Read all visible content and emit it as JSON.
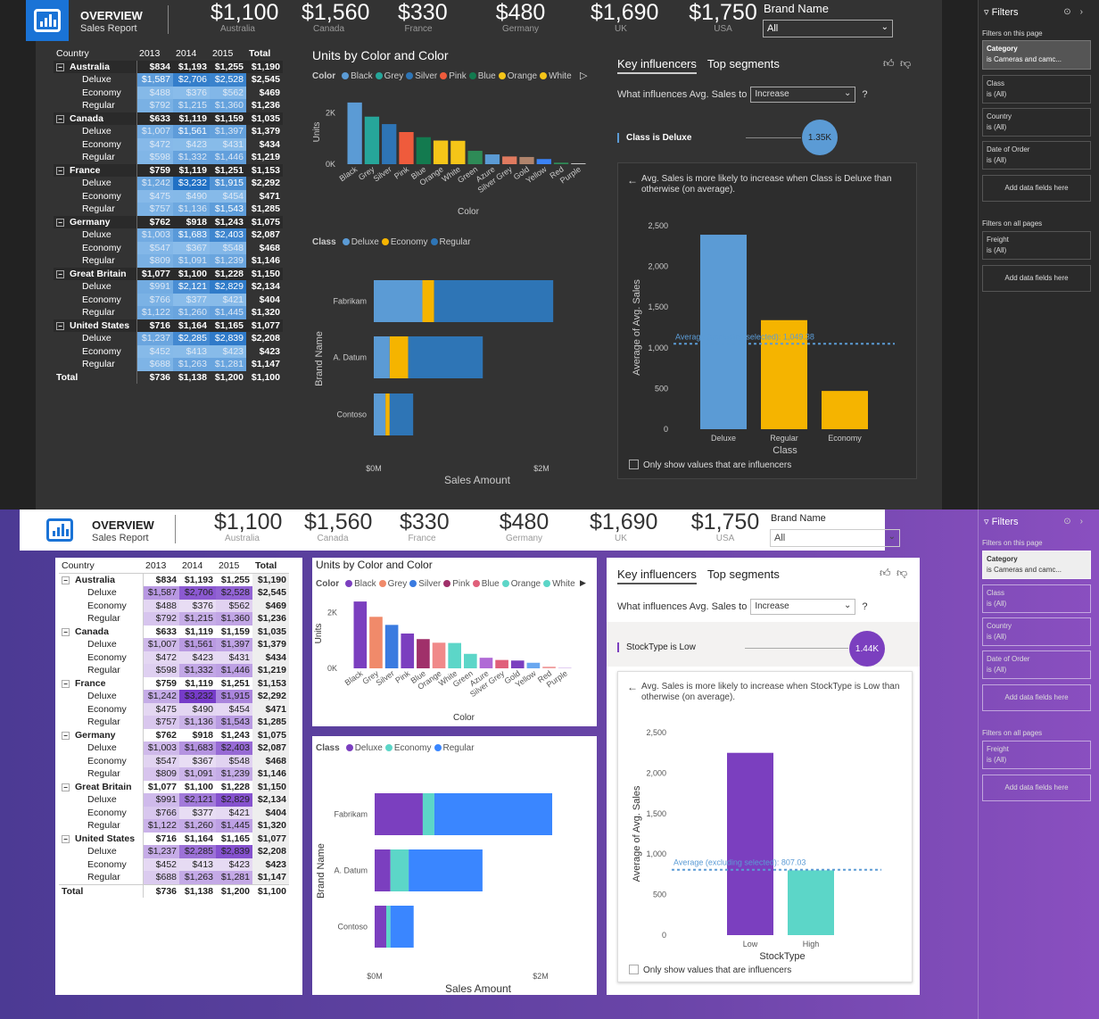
{
  "header": {
    "title": "OVERVIEW",
    "subtitle": "Sales Report",
    "kpis": [
      {
        "value": "$1,100",
        "label": "Australia"
      },
      {
        "value": "$1,560",
        "label": "Canada"
      },
      {
        "value": "$330",
        "label": "France"
      },
      {
        "value": "$480",
        "label": "Germany"
      },
      {
        "value": "$1,690",
        "label": "UK"
      },
      {
        "value": "$1,750",
        "label": "USA"
      }
    ],
    "brand_filter_label": "Brand Name",
    "brand_filter_value": "All"
  },
  "matrix": {
    "columns": [
      "Country",
      "2013",
      "2014",
      "2015",
      "Total"
    ],
    "groups": [
      {
        "name": "Australia",
        "values": [
          "$834",
          "$1,193",
          "$1,255",
          "$1,190"
        ],
        "rows": [
          {
            "name": "Deluxe",
            "values": [
              "$1,587",
              "$2,706",
              "$2,528",
              "$2,545"
            ]
          },
          {
            "name": "Economy",
            "values": [
              "$488",
              "$376",
              "$562",
              "$469"
            ]
          },
          {
            "name": "Regular",
            "values": [
              "$792",
              "$1,215",
              "$1,360",
              "$1,236"
            ]
          }
        ]
      },
      {
        "name": "Canada",
        "values": [
          "$633",
          "$1,119",
          "$1,159",
          "$1,035"
        ],
        "rows": [
          {
            "name": "Deluxe",
            "values": [
              "$1,007",
              "$1,561",
              "$1,397",
              "$1,379"
            ]
          },
          {
            "name": "Economy",
            "values": [
              "$472",
              "$423",
              "$431",
              "$434"
            ]
          },
          {
            "name": "Regular",
            "values": [
              "$598",
              "$1,332",
              "$1,446",
              "$1,219"
            ]
          }
        ]
      },
      {
        "name": "France",
        "values": [
          "$759",
          "$1,119",
          "$1,251",
          "$1,153"
        ],
        "rows": [
          {
            "name": "Deluxe",
            "values": [
              "$1,242",
              "$3,232",
              "$1,915",
              "$2,292"
            ]
          },
          {
            "name": "Economy",
            "values": [
              "$475",
              "$490",
              "$454",
              "$471"
            ]
          },
          {
            "name": "Regular",
            "values": [
              "$757",
              "$1,136",
              "$1,543",
              "$1,285"
            ]
          }
        ]
      },
      {
        "name": "Germany",
        "values": [
          "$762",
          "$918",
          "$1,243",
          "$1,075"
        ],
        "rows": [
          {
            "name": "Deluxe",
            "values": [
              "$1,003",
              "$1,683",
              "$2,403",
              "$2,087"
            ]
          },
          {
            "name": "Economy",
            "values": [
              "$547",
              "$367",
              "$548",
              "$468"
            ]
          },
          {
            "name": "Regular",
            "values": [
              "$809",
              "$1,091",
              "$1,239",
              "$1,146"
            ]
          }
        ]
      },
      {
        "name": "Great Britain",
        "values": [
          "$1,077",
          "$1,100",
          "$1,228",
          "$1,150"
        ],
        "rows": [
          {
            "name": "Deluxe",
            "values": [
              "$991",
              "$2,121",
              "$2,829",
              "$2,134"
            ]
          },
          {
            "name": "Economy",
            "values": [
              "$766",
              "$377",
              "$421",
              "$404"
            ]
          },
          {
            "name": "Regular",
            "values": [
              "$1,122",
              "$1,260",
              "$1,445",
              "$1,320"
            ]
          }
        ]
      },
      {
        "name": "United States",
        "values": [
          "$716",
          "$1,164",
          "$1,165",
          "$1,077"
        ],
        "rows": [
          {
            "name": "Deluxe",
            "values": [
              "$1,237",
              "$2,285",
              "$2,839",
              "$2,208"
            ]
          },
          {
            "name": "Economy",
            "values": [
              "$452",
              "$413",
              "$423",
              "$423"
            ]
          },
          {
            "name": "Regular",
            "values": [
              "$688",
              "$1,263",
              "$1,281",
              "$1,147"
            ]
          }
        ]
      }
    ],
    "total": {
      "name": "Total",
      "values": [
        "$736",
        "$1,138",
        "$1,200",
        "$1,100"
      ]
    }
  },
  "units_chart": {
    "title": "Units by Color and Color",
    "legend_title": "Color",
    "legend": [
      "Black",
      "Grey",
      "Silver",
      "Pink",
      "Blue",
      "Orange",
      "White"
    ],
    "colors_dark": [
      "#5b9bd5",
      "#26a69a",
      "#2e75b6",
      "#ef5b3c",
      "#137a4f",
      "#f5c518",
      "#f5c518",
      "#2e8b57",
      "#5b9bd5",
      "#e07a5f",
      "#b0846c",
      "#3b82f6",
      "#2e8b57",
      "#e0e0e0",
      "#444"
    ],
    "colors_light": [
      "#7b3fbf",
      "#f08a6a",
      "#3a7be0",
      "#7b3fbf",
      "#a0306a",
      "#f08a8a",
      "#5cd6c8",
      "#5cd6c8",
      "#b06ad6",
      "#e0607a",
      "#7b3fbf",
      "#6aa8f0",
      "#f0a0a0",
      "#e0c8f0",
      "#ccc"
    ]
  },
  "brand_chart": {
    "legend_title": "Class",
    "legend": [
      "Deluxe",
      "Economy",
      "Regular"
    ],
    "colors_dark": [
      "#5b9bd5",
      "#f5b400",
      "#2e75b6"
    ],
    "colors_light": [
      "#7b3fbf",
      "#5cd6c8",
      "#3a86ff"
    ]
  },
  "key_influencers": {
    "tab_key": "Key influencers",
    "tab_top": "Top segments",
    "question": "What influences Avg. Sales to",
    "direction": "Increase",
    "question_mark": "?",
    "dark": {
      "influencer": "Class is Deluxe",
      "bubble": "1.35K",
      "explanation": "Avg. Sales is more likely to increase when Class is Deluxe than otherwise (on average).",
      "avg_label": "Average (excluding selected): 1,049.38",
      "xtitle": "Class",
      "ytitle": "Average of Avg. Sales"
    },
    "light": {
      "influencer": "StockType is Low",
      "bubble": "1.44K",
      "explanation": "Avg. Sales is more likely to increase when StockType is Low than otherwise (on average).",
      "avg_label": "Average (excluding selected): 807.03",
      "xtitle": "StockType",
      "ytitle": "Average of Avg. Sales"
    },
    "checkbox": "Only show values that are influencers"
  },
  "filters": {
    "title": "Filters",
    "on_page": "Filters on this page",
    "category_name": "Category",
    "category_value": "is Cameras and camc...",
    "cards": [
      {
        "name": "Class",
        "value": "is (All)"
      },
      {
        "name": "Country",
        "value": "is (All)"
      },
      {
        "name": "Date of Order",
        "value": "is (All)"
      }
    ],
    "add": "Add data fields here",
    "all_pages": "Filters on all pages",
    "freight_name": "Freight",
    "freight_value": "is (All)"
  },
  "chart_data": [
    {
      "type": "bar",
      "title": "Units by Color and Color",
      "categories": [
        "Black",
        "Grey",
        "Silver",
        "Pink",
        "Blue",
        "Orange",
        "White",
        "Green",
        "Azure",
        "Silver Grey",
        "Gold",
        "Yellow",
        "Red",
        "Purple"
      ],
      "values": [
        2400,
        1850,
        1560,
        1250,
        1050,
        920,
        910,
        520,
        380,
        300,
        280,
        200,
        60,
        30
      ],
      "xlabel": "Color",
      "ylabel": "Units",
      "yticks": [
        "0K",
        "2K"
      ],
      "ylim": [
        0,
        2500
      ]
    },
    {
      "type": "bar",
      "orientation": "horizontal",
      "stacked": true,
      "categories": [
        "Fabrikam",
        "A. Datum",
        "Contoso"
      ],
      "series": [
        {
          "name": "Deluxe",
          "values": [
            0.58,
            0.19,
            0.14
          ]
        },
        {
          "name": "Economy",
          "values": [
            0.14,
            0.22,
            0.05
          ]
        },
        {
          "name": "Regular",
          "values": [
            1.42,
            0.89,
            0.28
          ]
        }
      ],
      "xlabel": "Sales Amount",
      "ylabel": "Brand Name",
      "xticks": [
        "$0M",
        "$2M"
      ]
    },
    {
      "type": "bar",
      "categories": [
        "Deluxe",
        "Regular",
        "Economy"
      ],
      "values": [
        2390,
        1340,
        470
      ],
      "average_line": 1049.38,
      "xlabel": "Class",
      "ylabel": "Average of Avg. Sales",
      "yticks": [
        "0",
        "500",
        "1,000",
        "1,500",
        "2,000",
        "2,500"
      ],
      "ylim": [
        0,
        2500
      ]
    },
    {
      "type": "bar",
      "categories": [
        "Low",
        "High"
      ],
      "values": [
        2250,
        800
      ],
      "average_line": 807.03,
      "xlabel": "StockType",
      "ylabel": "Average of Avg. Sales",
      "yticks": [
        "0",
        "500",
        "1,000",
        "1,500",
        "2,000",
        "2,500"
      ],
      "ylim": [
        0,
        2500
      ]
    }
  ]
}
